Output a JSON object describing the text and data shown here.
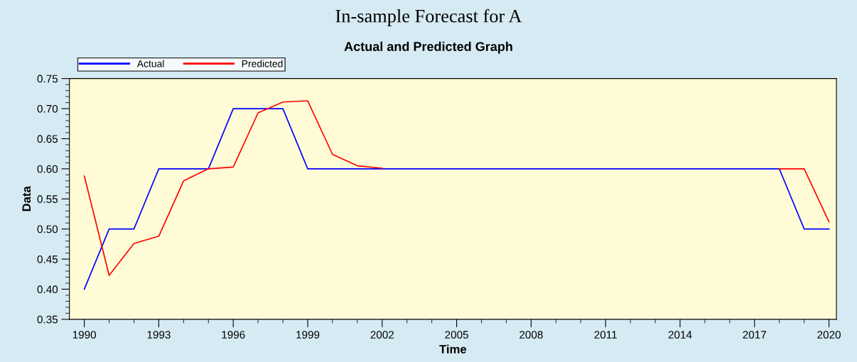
{
  "chart_data": {
    "type": "line",
    "title": "In-sample Forecast for A",
    "subtitle": "Actual and Predicted Graph",
    "xlabel": "Time",
    "ylabel": "Data",
    "x": [
      1990,
      1991,
      1992,
      1993,
      1994,
      1995,
      1996,
      1997,
      1998,
      1999,
      2000,
      2001,
      2002,
      2003,
      2004,
      2005,
      2006,
      2007,
      2008,
      2009,
      2010,
      2011,
      2012,
      2013,
      2014,
      2015,
      2016,
      2017,
      2018,
      2019,
      2020
    ],
    "series": [
      {
        "name": "Actual",
        "color": "#0000ff",
        "values": [
          0.4,
          0.5,
          0.5,
          0.6,
          0.6,
          0.6,
          0.7,
          0.7,
          0.7,
          0.6,
          0.6,
          0.6,
          0.6,
          0.6,
          0.6,
          0.6,
          0.6,
          0.6,
          0.6,
          0.6,
          0.6,
          0.6,
          0.6,
          0.6,
          0.6,
          0.6,
          0.6,
          0.6,
          0.6,
          0.5,
          0.5
        ]
      },
      {
        "name": "Predicted",
        "color": "#ff0000",
        "values": [
          0.588,
          0.423,
          0.476,
          0.488,
          0.58,
          0.6,
          0.603,
          0.693,
          0.711,
          0.713,
          0.624,
          0.605,
          0.601,
          null,
          null,
          null,
          null,
          null,
          null,
          null,
          null,
          null,
          null,
          null,
          null,
          null,
          null,
          null,
          0.6,
          0.6,
          0.512
        ]
      }
    ],
    "xlim": [
      1989.4,
      2020.3
    ],
    "xticks": [
      1990,
      1993,
      1996,
      1999,
      2002,
      2005,
      2008,
      2011,
      2014,
      2017,
      2020
    ],
    "ylim": [
      0.35,
      0.75
    ],
    "yticks": [
      {
        "value": 0.35,
        "label": "0.35"
      },
      {
        "value": 0.4,
        "label": "0.40"
      },
      {
        "value": 0.45,
        "label": "0.45"
      },
      {
        "value": 0.5,
        "label": "0.50"
      },
      {
        "value": 0.55,
        "label": "0.55"
      },
      {
        "value": 0.6,
        "label": "0.60"
      },
      {
        "value": 0.65,
        "label": "0.65"
      },
      {
        "value": 0.7,
        "label": "0.70"
      },
      {
        "value": 0.75,
        "label": "0.75"
      }
    ],
    "grid": false,
    "legend": "top left",
    "marker": "none",
    "line_style": "solid"
  }
}
